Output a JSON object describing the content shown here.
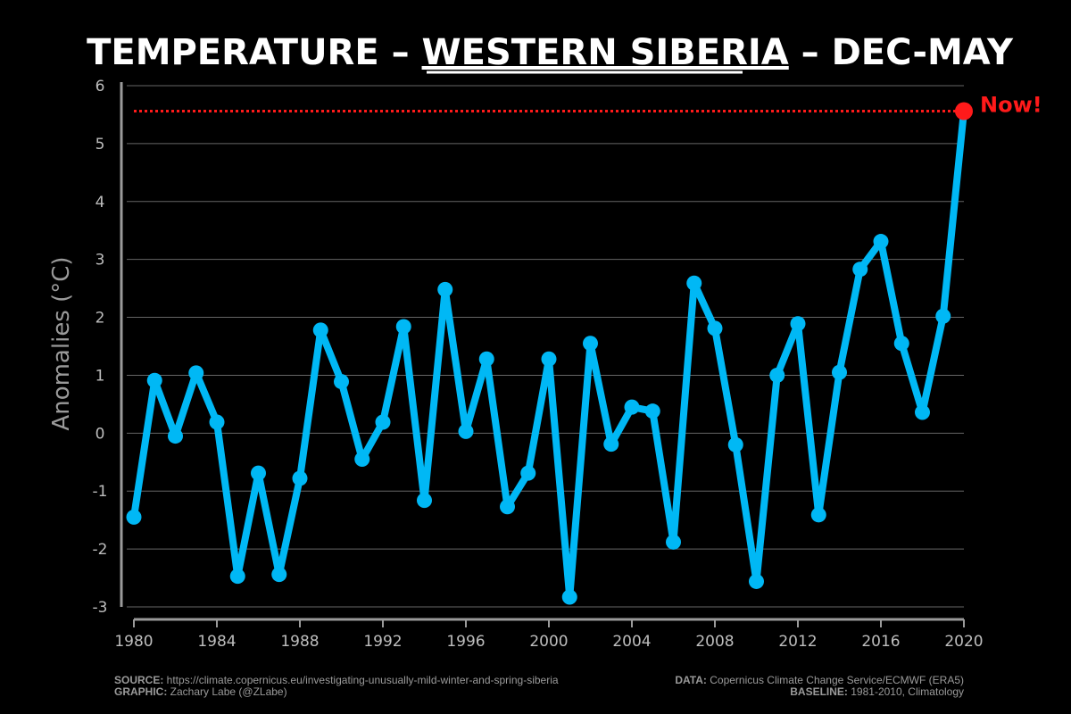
{
  "title": {
    "part1": "TEMPERATURE – ",
    "part2": "WESTERN SIBERIA",
    "part3": " – DEC-MAY"
  },
  "now_label": "Now!",
  "footer": {
    "source_label": "SOURCE:",
    "source_value": " https://climate.copernicus.eu/investigating-unusually-mild-winter-and-spring-siberia",
    "graphic_label": "GRAPHIC:",
    "graphic_value": " Zachary Labe (@ZLabe)",
    "data_label": "DATA:",
    "data_value": " Copernicus Climate Change Service/ECMWF (ERA5)",
    "baseline_label": "BASELINE:",
    "baseline_value": " 1981-2010, Climatology"
  },
  "colors": {
    "background": "#000000",
    "line": "#00b8f5",
    "highlight": "#ff1a1a",
    "grid": "#666666",
    "axis": "#9a9a9a"
  },
  "chart_data": {
    "type": "line",
    "title": "TEMPERATURE – WESTERN SIBERIA – DEC-MAY",
    "xlabel": "",
    "ylabel": "Anomalies (°C)",
    "xlim": [
      1980,
      2020
    ],
    "ylim": [
      -3,
      6
    ],
    "xticks": [
      1980,
      1984,
      1988,
      1992,
      1996,
      2000,
      2004,
      2008,
      2012,
      2016,
      2020
    ],
    "yticks": [
      -3,
      -2,
      -1,
      0,
      1,
      2,
      3,
      4,
      5,
      6
    ],
    "grid": "horizontal",
    "x": [
      1980,
      1981,
      1982,
      1983,
      1984,
      1985,
      1986,
      1987,
      1988,
      1989,
      1990,
      1991,
      1992,
      1993,
      1994,
      1995,
      1996,
      1997,
      1998,
      1999,
      2000,
      2001,
      2002,
      2003,
      2004,
      2005,
      2006,
      2007,
      2008,
      2009,
      2010,
      2011,
      2012,
      2013,
      2014,
      2015,
      2016,
      2017,
      2018,
      2019,
      2020
    ],
    "y": [
      -1.45,
      0.91,
      -0.05,
      1.04,
      0.19,
      -2.47,
      -0.69,
      -2.44,
      -0.78,
      1.78,
      0.89,
      -0.45,
      0.19,
      1.84,
      -1.16,
      2.48,
      0.03,
      1.28,
      -1.27,
      -0.69,
      1.28,
      -2.83,
      1.55,
      -0.19,
      0.45,
      0.38,
      -1.88,
      2.59,
      1.81,
      -0.2,
      -2.56,
      1.0,
      1.89,
      -1.41,
      1.05,
      2.83,
      3.31,
      1.55,
      0.36,
      2.02,
      5.56
    ],
    "highlight": {
      "x": 2020,
      "y": 5.56,
      "label": "Now!",
      "reference_line": "dotted"
    }
  }
}
